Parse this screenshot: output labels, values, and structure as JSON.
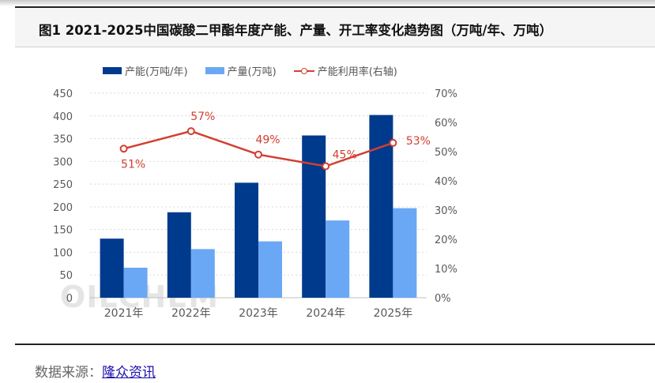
{
  "figure": {
    "title": "图1  2021-2025中国碳酸二甲酯年度产能、产量、开工率变化趋势图（万吨/年、万吨）",
    "source_label": "数据来源：",
    "source_link": "隆众资讯",
    "watermark": "OILCHEM"
  },
  "legend": {
    "capacity": "产能(万吨/年)",
    "output": "产量(万吨)",
    "utilization": "产能利用率(右轴)"
  },
  "colors": {
    "capacity": "#003a8c",
    "output": "#6aa8f5",
    "utilization": "#d23f31"
  },
  "chart_data": {
    "type": "bar",
    "categories": [
      "2021年",
      "2022年",
      "2023年",
      "2024年",
      "2025年"
    ],
    "series": [
      {
        "name": "产能(万吨/年)",
        "type": "bar",
        "axis": "left",
        "values": [
          130,
          188,
          253,
          357,
          402
        ]
      },
      {
        "name": "产量(万吨)",
        "type": "bar",
        "axis": "left",
        "values": [
          66,
          107,
          124,
          170,
          197
        ]
      },
      {
        "name": "产能利用率(右轴)",
        "type": "line",
        "axis": "right",
        "values": [
          51,
          57,
          49,
          45,
          53
        ],
        "labels": [
          "51%",
          "57%",
          "49%",
          "45%",
          "53%"
        ]
      }
    ],
    "y_left": {
      "ylim": [
        0,
        450
      ],
      "ticks": [
        "0",
        "50",
        "100",
        "150",
        "200",
        "250",
        "300",
        "350",
        "400",
        "450"
      ]
    },
    "y_right": {
      "ylim": [
        0,
        70
      ],
      "ticks": [
        "0%",
        "10%",
        "20%",
        "30%",
        "40%",
        "50%",
        "60%",
        "70%"
      ]
    },
    "grid": true,
    "legend_position": "top"
  }
}
